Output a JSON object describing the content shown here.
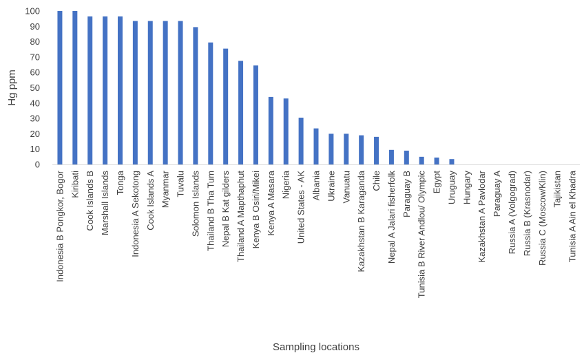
{
  "chart_data": {
    "type": "bar",
    "title": "",
    "xlabel": "Sampling locations",
    "ylabel": "Hg ppm",
    "ylim": [
      0,
      100
    ],
    "yticks": [
      0,
      10,
      20,
      30,
      40,
      50,
      60,
      70,
      80,
      90,
      100
    ],
    "grid": false,
    "legend": "none",
    "bar_color": "#4472C4",
    "categories": [
      "Indonesia B Pongkor, Bogor",
      "Kiribati",
      "Cook Islands B",
      "Marshall Islands",
      "Tonga",
      "Indonesia A Sekotong",
      "Cook Islands A",
      "Myanmar",
      "Tuvalu",
      "Solomon Islands",
      "Thailand B Tha Tum",
      "Nepal B  Kat gilders",
      "Thailand A Mapthaphut",
      "Kenya B Osiri/Mikei",
      "Kenya A Masara",
      "Nigeria",
      "United States - AK",
      "Albania",
      "Ukraine",
      "Vanuatu",
      "Kazakhstan B Karaganda",
      "Chile",
      "Nepal A Jalari fisherfolk",
      "Paraguay B",
      "Tunisia B River Andlou/ Olympic",
      "Egypt",
      "Uruguay",
      "Hungary",
      "Kazakhstan A Pavlodar",
      "Paraguay A",
      "Russia A (Volgograd)",
      "Russia B (Krasnodar)",
      "Russia C (Moscow/Klin)",
      "Tajikistan",
      "Tunisia A Ain el Khadra"
    ],
    "values": [
      100,
      100,
      96.5,
      96.5,
      96.5,
      93.5,
      93.5,
      93.5,
      93.5,
      89.5,
      79.5,
      75.5,
      67.5,
      64.5,
      44,
      43,
      30.5,
      23.5,
      20,
      20,
      19,
      18,
      9.5,
      9,
      5,
      4.5,
      3.5,
      0,
      0,
      0,
      0,
      0,
      0,
      0,
      0
    ]
  }
}
